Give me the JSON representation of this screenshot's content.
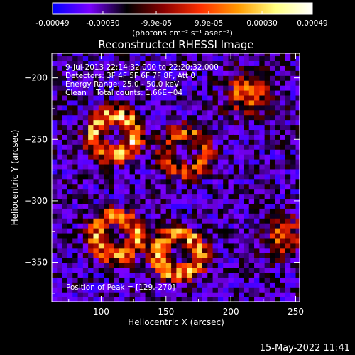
{
  "chart_data": {
    "type": "heatmap",
    "title": "Reconstructed RHESSI Image",
    "xlabel": "Heliocentric X (arcsec)",
    "ylabel": "Heliocentric Y (arcsec)",
    "xlim": [
      62,
      253
    ],
    "ylim": [
      -382,
      -180
    ],
    "x_ticks": [
      "100",
      "150",
      "200",
      "250"
    ],
    "y_ticks": [
      "-200",
      "-250",
      "-300",
      "-350"
    ],
    "colorbar": {
      "ticks": [
        "-0.00049",
        "-0.00030",
        "-9.9e-05",
        "9.9e-05",
        "0.00030",
        "0.00049"
      ],
      "units": "(photons cm⁻² s⁻¹ asec⁻²)",
      "range": [
        -0.00049,
        0.00049
      ],
      "colormap": [
        "#0000ff",
        "#7a00ff",
        "#000000",
        "#8b0000",
        "#ff3000",
        "#ff9a00",
        "#ffff80",
        "#ffffff"
      ]
    },
    "annotations": [
      "9-Jul-2013 22:14:32.000 to 22:20:32.000",
      "Detectors: 3F 4F 5F 6F 7F 8F, Att 0",
      "Energy Range: 25.0 - 50.0 keV",
      "Clean    Total counts: 1.66E+04"
    ],
    "peak_label": "Position of Peak = [129,-270]",
    "peak_position": [
      129,
      -270
    ],
    "sources": [
      {
        "x": 108,
        "y": -248,
        "shape": "ring",
        "intensity": 0.9
      },
      {
        "x": 163,
        "y": -262,
        "shape": "ring",
        "intensity": 0.55
      },
      {
        "x": 110,
        "y": -330,
        "shape": "ring",
        "intensity": 0.75
      },
      {
        "x": 158,
        "y": -345,
        "shape": "ring",
        "intensity": 0.85
      },
      {
        "x": 210,
        "y": -215,
        "shape": "blob",
        "intensity": 0.7
      },
      {
        "x": 240,
        "y": -330,
        "shape": "blob",
        "intensity": 0.6
      }
    ]
  },
  "footer": {
    "timestamp": "15-May-2022 11:41"
  }
}
